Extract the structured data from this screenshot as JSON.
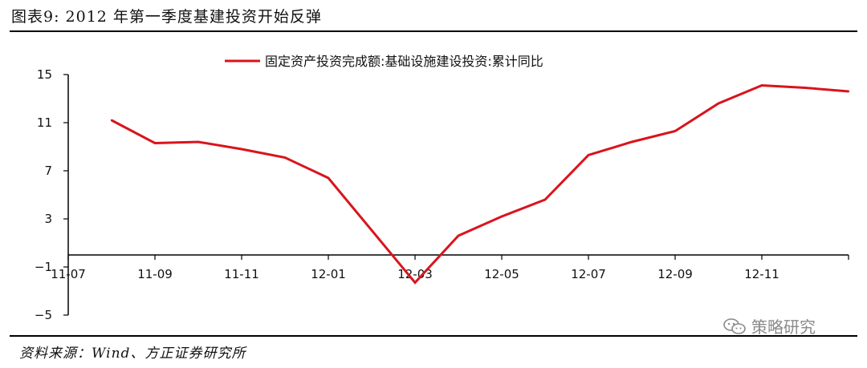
{
  "header": {
    "title": "图表9:   2012 年第一季度基建投资开始反弹"
  },
  "footer": {
    "source": "资料来源：Wind、方正证券研究所",
    "watermark": "策略研究",
    "watermark_icon": "wechat-icon"
  },
  "colors": {
    "series": "#d9141c",
    "axis": "#000000"
  },
  "chart_data": {
    "type": "line",
    "title": "",
    "xlabel": "",
    "ylabel": "",
    "ylim": [
      -5,
      15
    ],
    "yticks": [
      -5,
      -1,
      3,
      7,
      11,
      15
    ],
    "xtick_labels": [
      "11-07",
      "11-09",
      "11-11",
      "12-01",
      "12-03",
      "12-05",
      "12-07",
      "12-09",
      "12-11"
    ],
    "x": [
      "11-08",
      "11-09",
      "11-10",
      "11-11",
      "11-12",
      "12-01",
      "12-03",
      "12-04",
      "12-05",
      "12-06",
      "12-07",
      "12-08",
      "12-09",
      "12-10",
      "12-11",
      "12-12",
      "13-01"
    ],
    "grid": false,
    "legend_position": "top-center",
    "series": [
      {
        "name": "固定资产投资完成额:基础设施建设投资:累计同比",
        "values": [
          11.2,
          9.3,
          9.4,
          8.8,
          8.1,
          6.4,
          -2.3,
          1.6,
          3.2,
          4.6,
          8.3,
          9.4,
          10.3,
          12.6,
          14.1,
          13.9,
          13.6
        ]
      }
    ]
  }
}
